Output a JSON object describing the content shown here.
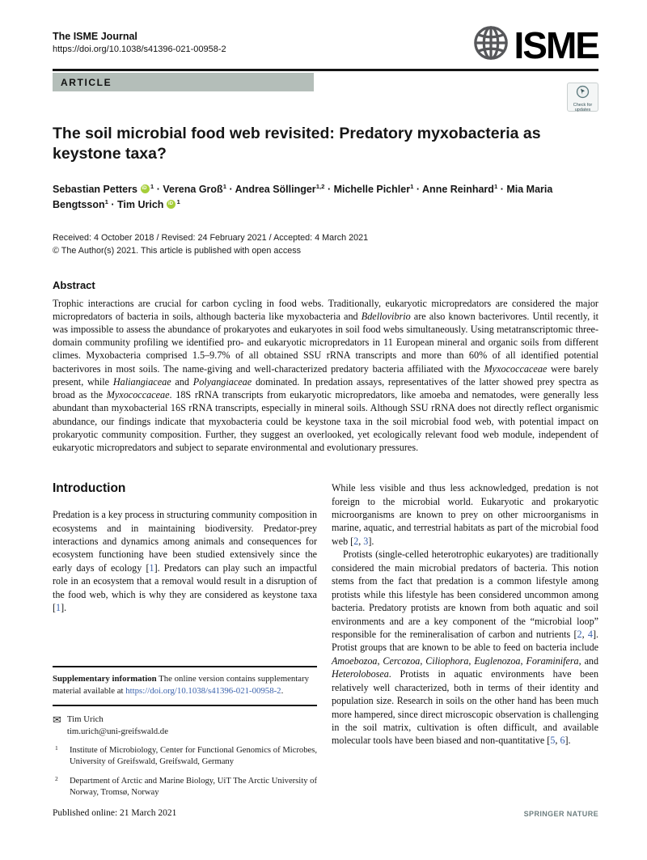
{
  "header": {
    "journal": "The ISME Journal",
    "doi": "https://doi.org/10.1038/s41396-021-00958-2",
    "logo_text": "ISME",
    "article_label": "ARTICLE",
    "check_updates_label": "Check for updates"
  },
  "title": "The soil microbial food web revisited: Predatory myxobacteria as keystone taxa?",
  "authors_rich": [
    {
      "t": "Sebastian Petters"
    },
    {
      "s": "orcid"
    },
    {
      "t": "1",
      "s": "sup"
    },
    {
      "t": " · "
    },
    {
      "t": "Verena Groß"
    },
    {
      "t": "1",
      "s": "sup"
    },
    {
      "t": " · "
    },
    {
      "t": "Andrea Söllinger"
    },
    {
      "t": "1,2",
      "s": "sup"
    },
    {
      "t": " · "
    },
    {
      "t": "Michelle Pichler"
    },
    {
      "t": "1",
      "s": "sup"
    },
    {
      "t": " · "
    },
    {
      "t": "Anne Reinhard"
    },
    {
      "t": "1",
      "s": "sup"
    },
    {
      "t": " · "
    },
    {
      "t": "Mia Maria Bengtsson"
    },
    {
      "t": "1",
      "s": "sup"
    },
    {
      "t": " · "
    },
    {
      "t": "Tim Urich"
    },
    {
      "s": "orcid"
    },
    {
      "t": "1",
      "s": "sup"
    }
  ],
  "meta": {
    "received_line": "Received: 4 October 2018 / Revised: 24 February 2021 / Accepted: 4 March 2021",
    "copyright_line": "© The Author(s) 2021. This article is published with open access"
  },
  "abstract": {
    "heading": "Abstract",
    "body_rich": [
      {
        "t": "Trophic interactions are crucial for carbon cycling in food webs. Traditionally, eukaryotic micropredators are considered the major micropredators of bacteria in soils, although bacteria like myxobacteria and "
      },
      {
        "t": "Bdellovibrio",
        "s": "i"
      },
      {
        "t": " are also known bacterivores. Until recently, it was impossible to assess the abundance of prokaryotes and eukaryotes in soil food webs simultaneously. Using metatranscriptomic three-domain community profiling we identified pro- and eukaryotic micropredators in 11 European mineral and organic soils from different climes. Myxobacteria comprised 1.5–9.7% of all obtained SSU rRNA transcripts and more than 60% of all identified potential bacterivores in most soils. The name-giving and well-characterized predatory bacteria affiliated with the "
      },
      {
        "t": "Myxococcaceae",
        "s": "i"
      },
      {
        "t": " were barely present, while "
      },
      {
        "t": "Haliangiaceae",
        "s": "i"
      },
      {
        "t": " and "
      },
      {
        "t": "Polyangiaceae",
        "s": "i"
      },
      {
        "t": " dominated. In predation assays, representatives of the latter showed prey spectra as broad as the "
      },
      {
        "t": "Myxococcaceae",
        "s": "i"
      },
      {
        "t": ". 18S rRNA transcripts from eukaryotic micropredators, like amoeba and nematodes, were generally less abundant than myxobacterial 16S rRNA transcripts, especially in mineral soils. Although SSU rRNA does not directly reflect organismic abundance, our findings indicate that myxobacteria could be keystone taxa in the soil microbial food web, with potential impact on prokaryotic community composition. Further, they suggest an overlooked, yet ecologically relevant food web module, independent of eukaryotic micropredators and subject to separate environmental and evolutionary pressures."
      }
    ]
  },
  "introduction": {
    "heading": "Introduction",
    "left_para_rich": [
      {
        "t": "Predation is a key process in structuring community composition in ecosystems and in maintaining biodiversity. Predator-prey interactions and dynamics among animals and consequences for ecosystem functioning have been studied extensively since the early days of ecology ["
      },
      {
        "t": "1",
        "s": "link"
      },
      {
        "t": "]. Predators can play such an impactful role in an ecosystem that a removal would result in a disruption of the food web, which is why they are considered as keystone taxa ["
      },
      {
        "t": "1",
        "s": "link"
      },
      {
        "t": "]."
      }
    ],
    "right_para1_rich": [
      {
        "t": "While less visible and thus less acknowledged, predation is not foreign to the microbial world. Eukaryotic and prokaryotic microorganisms are known to prey on other microorganisms in marine, aquatic, and terrestrial habitats as part of the microbial food web ["
      },
      {
        "t": "2",
        "s": "link"
      },
      {
        "t": ", "
      },
      {
        "t": "3",
        "s": "link"
      },
      {
        "t": "]."
      }
    ],
    "right_para2_rich": [
      {
        "t": "Protists (single-celled heterotrophic eukaryotes) are traditionally considered the main microbial predators of bacteria. This notion stems from the fact that predation is a common lifestyle among protists while this lifestyle has been considered uncommon among bacteria. Predatory protists are known from both aquatic and soil environments and are a key component of the “microbial loop” responsible for the remineralisation of carbon and nutrients ["
      },
      {
        "t": "2",
        "s": "link"
      },
      {
        "t": ", "
      },
      {
        "t": "4",
        "s": "link"
      },
      {
        "t": "]. Protist groups that are known to be able to feed on bacteria include "
      },
      {
        "t": "Amoebozoa",
        "s": "i"
      },
      {
        "t": ", "
      },
      {
        "t": "Cercozoa",
        "s": "i"
      },
      {
        "t": ", "
      },
      {
        "t": "Ciliophora",
        "s": "i"
      },
      {
        "t": ", "
      },
      {
        "t": "Euglenozoa",
        "s": "i"
      },
      {
        "t": ", "
      },
      {
        "t": "Foraminifera",
        "s": "i"
      },
      {
        "t": ", and "
      },
      {
        "t": "Heterolobosea",
        "s": "i"
      },
      {
        "t": ". Protists in aquatic environments have been relatively well characterized, both in terms of their identity and population size. Research in soils on the other hand has been much more hampered, since direct microscopic observation is challenging in the soil matrix, cultivation is often difficult, and available molecular tools have been biased and non-quantitative ["
      },
      {
        "t": "5",
        "s": "link"
      },
      {
        "t": ", "
      },
      {
        "t": "6",
        "s": "link"
      },
      {
        "t": "]."
      }
    ]
  },
  "footnotes": {
    "supplementary_rich": [
      {
        "t": "Supplementary information",
        "s": "b"
      },
      {
        "t": " The online version contains supplementary material available at "
      },
      {
        "t": "https://doi.org/10.1038/s41396-021-00958-2",
        "s": "link"
      },
      {
        "t": "."
      }
    ],
    "correspondence_name": "Tim Urich",
    "correspondence_email": "tim.urich@uni-greifswald.de",
    "affiliations": [
      {
        "num": "1",
        "text": "Institute of Microbiology, Center for Functional Genomics of Microbes, University of Greifswald, Greifswald, Germany"
      },
      {
        "num": "2",
        "text": "Department of Arctic and Marine Biology, UiT The Arctic University of Norway, Tromsø, Norway"
      }
    ]
  },
  "footer": {
    "published": "Published online: 21 March 2021",
    "publisher": "SPRINGER NATURE"
  }
}
